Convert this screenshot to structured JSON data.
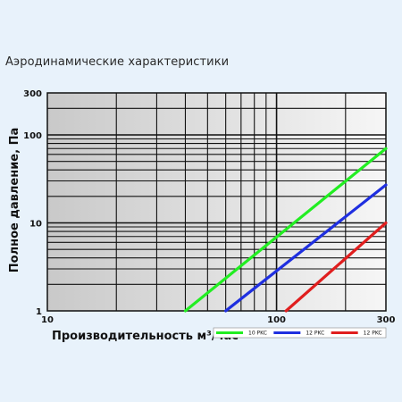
{
  "title": "Аэродинамические характеристики",
  "chart_data": {
    "type": "line",
    "title": "Аэродинамические характеристики",
    "xlabel": "Производительность м³/час",
    "ylabel": "Полное давление, Па",
    "x_scale": "log",
    "y_scale": "log",
    "xlim": [
      10,
      300
    ],
    "ylim": [
      1,
      300
    ],
    "x_ticks": [
      "10",
      "100",
      "300"
    ],
    "y_ticks": [
      "1",
      "10",
      "100",
      "300"
    ],
    "grid": true,
    "legend_position": "bottom-right",
    "series": [
      {
        "name": "10 PKC",
        "color": "#22ee22",
        "points": [
          [
            40,
            1
          ],
          [
            300,
            70
          ]
        ]
      },
      {
        "name": "12 PKC",
        "color": "#1f2fe0",
        "points": [
          [
            60,
            1
          ],
          [
            300,
            27
          ]
        ]
      },
      {
        "name": "12 PKC",
        "color": "#e01e1e",
        "points": [
          [
            110,
            1
          ],
          [
            300,
            10
          ]
        ]
      }
    ]
  }
}
